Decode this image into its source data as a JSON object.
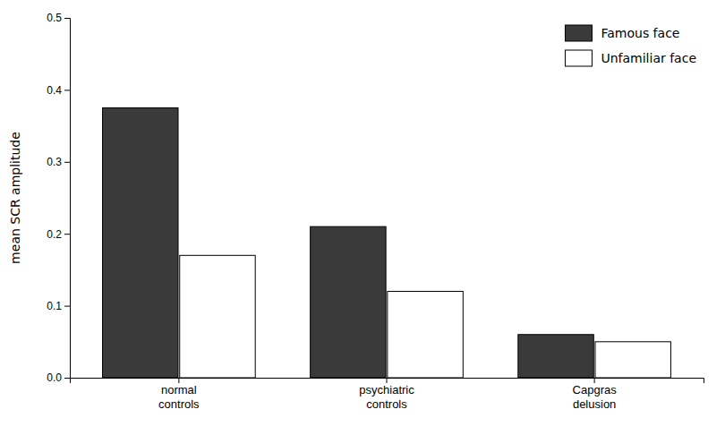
{
  "chart_data": {
    "type": "bar",
    "categories": [
      "normal\ncontrols",
      "psychiatric\ncontrols",
      "Capgras\ndelusion"
    ],
    "series": [
      {
        "name": "Famous face",
        "color": "#3a3a3a",
        "values": [
          0.375,
          0.21,
          0.06
        ]
      },
      {
        "name": "Unfamiliar face",
        "color": "#ffffff",
        "values": [
          0.17,
          0.12,
          0.05
        ]
      }
    ],
    "ylabel": "mean SCR amplitude",
    "ylim": [
      0,
      0.5
    ],
    "yticks": [
      {
        "value": 0.0,
        "label": "0.0"
      },
      0.1,
      0.2,
      0.3,
      0.4,
      0.5
    ],
    "grid": false,
    "legend": "top-right"
  }
}
